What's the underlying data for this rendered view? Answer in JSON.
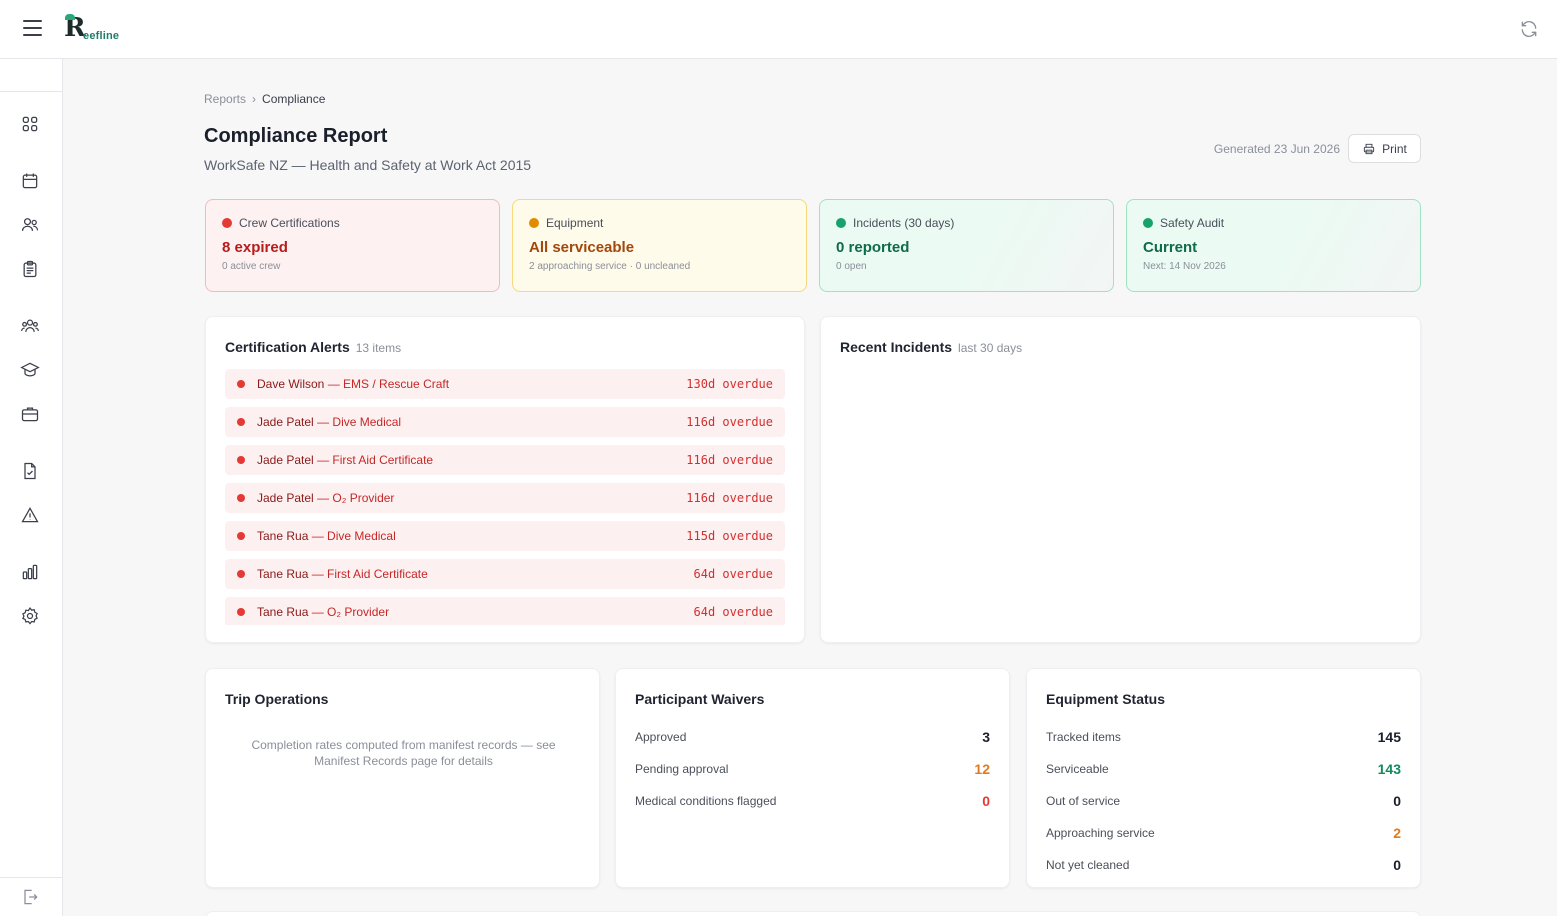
{
  "brand": {
    "logo_letter": "R",
    "logo_text": "eefline",
    "accent": "#1d7d6a"
  },
  "breadcrumb": {
    "parent": "Reports",
    "current": "Compliance"
  },
  "header": {
    "title": "Compliance Report",
    "subtitle": "WorkSafe NZ — Health and Safety at Work Act 2015",
    "generated": "Generated 23 Jun 2026",
    "print_label": "Print"
  },
  "cards": {
    "crew": {
      "label": "Crew Certifications",
      "value": "8 expired",
      "sub": "0 active crew",
      "color": "#e53935"
    },
    "equipment": {
      "label": "Equipment",
      "value": "All serviceable",
      "sub": "2 approaching service · 0 uncleaned",
      "color": "#e08a00"
    },
    "incidents": {
      "label": "Incidents (30 days)",
      "value": "0 reported",
      "sub": "0 open",
      "color": "#16a36b"
    },
    "audit": {
      "label": "Safety Audit",
      "value": "Current",
      "sub": "Next: 14 Nov 2026",
      "color": "#16a36b"
    }
  },
  "cert_alerts": {
    "title": "Certification Alerts",
    "count": "13 items",
    "items": [
      {
        "name": "Dave Wilson",
        "cert": "— EMS / Rescue Craft",
        "overdue": "130d overdue"
      },
      {
        "name": "Jade Patel",
        "cert": "— Dive Medical",
        "overdue": "116d overdue"
      },
      {
        "name": "Jade Patel",
        "cert": "— First Aid Certificate",
        "overdue": "116d overdue"
      },
      {
        "name": "Jade Patel",
        "cert": "— O₂ Provider",
        "overdue": "116d overdue"
      },
      {
        "name": "Tane Rua",
        "cert": "— Dive Medical",
        "overdue": "115d overdue"
      },
      {
        "name": "Tane Rua",
        "cert": "— First Aid Certificate",
        "overdue": "64d overdue"
      },
      {
        "name": "Tane Rua",
        "cert": "— O₂ Provider",
        "overdue": "64d overdue"
      }
    ]
  },
  "recent_incidents": {
    "title": "Recent Incidents",
    "meta": "last 30 days"
  },
  "trip_operations": {
    "title": "Trip Operations",
    "note": "Completion rates computed from manifest records — see Manifest Records page for details"
  },
  "waivers": {
    "title": "Participant Waivers",
    "rows": [
      {
        "label": "Approved",
        "value": "3"
      },
      {
        "label": "Pending approval",
        "value": "12"
      },
      {
        "label": "Medical conditions flagged",
        "value": "0"
      }
    ]
  },
  "equipment_status": {
    "title": "Equipment Status",
    "rows": [
      {
        "label": "Tracked items",
        "value": "145"
      },
      {
        "label": "Serviceable",
        "value": "143"
      },
      {
        "label": "Out of service",
        "value": "0"
      },
      {
        "label": "Approaching service",
        "value": "2"
      },
      {
        "label": "Not yet cleaned",
        "value": "0"
      }
    ]
  }
}
